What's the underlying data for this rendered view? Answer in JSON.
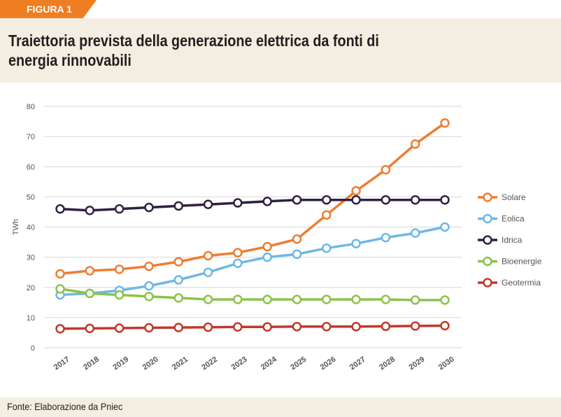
{
  "figure_tag": "FIGURA 1",
  "title": "Traiettoria prevista della generazione elettrica da fonti di energia rinnovabili",
  "source": "Fonte: Elaborazione da Pniec",
  "chart_data": {
    "type": "line",
    "title": "Traiettoria prevista della generazione elettrica da fonti di energia rinnovabili",
    "xlabel": "",
    "ylabel": "TWh",
    "ylim": [
      0,
      80
    ],
    "yticks": [
      0,
      10,
      20,
      30,
      40,
      50,
      60,
      70,
      80
    ],
    "grid": "horizontal",
    "legend_position": "right",
    "x": [
      "2017",
      "2018",
      "2019",
      "2020",
      "2021",
      "2022",
      "2023",
      "2024",
      "2025",
      "2026",
      "2027",
      "2028",
      "2029",
      "2030"
    ],
    "series": [
      {
        "name": "Solare",
        "color": "#ee7d31",
        "values": [
          24.5,
          25.5,
          26,
          27,
          28.5,
          30.5,
          31.5,
          33.5,
          36,
          44,
          52,
          59,
          67.5,
          74.5
        ]
      },
      {
        "name": "Eolica",
        "color": "#6cb8e6",
        "values": [
          17.5,
          18,
          19,
          20.5,
          22.5,
          25,
          28,
          30,
          31,
          33,
          34.5,
          36.5,
          38,
          40
        ]
      },
      {
        "name": "Idrica",
        "color": "#302142",
        "values": [
          46,
          45.5,
          46,
          46.5,
          47,
          47.5,
          48,
          48.5,
          49,
          49,
          49,
          49,
          49,
          49
        ]
      },
      {
        "name": "Bioenergie",
        "color": "#8bc34a",
        "values": [
          19.5,
          18,
          17.5,
          17,
          16.5,
          16,
          16,
          16,
          16,
          16,
          16,
          16,
          15.8,
          15.8
        ]
      },
      {
        "name": "Geotermia",
        "color": "#c0392b",
        "values": [
          6.3,
          6.4,
          6.5,
          6.6,
          6.7,
          6.8,
          6.9,
          6.9,
          7,
          7,
          7,
          7.1,
          7.2,
          7.3
        ]
      }
    ]
  }
}
